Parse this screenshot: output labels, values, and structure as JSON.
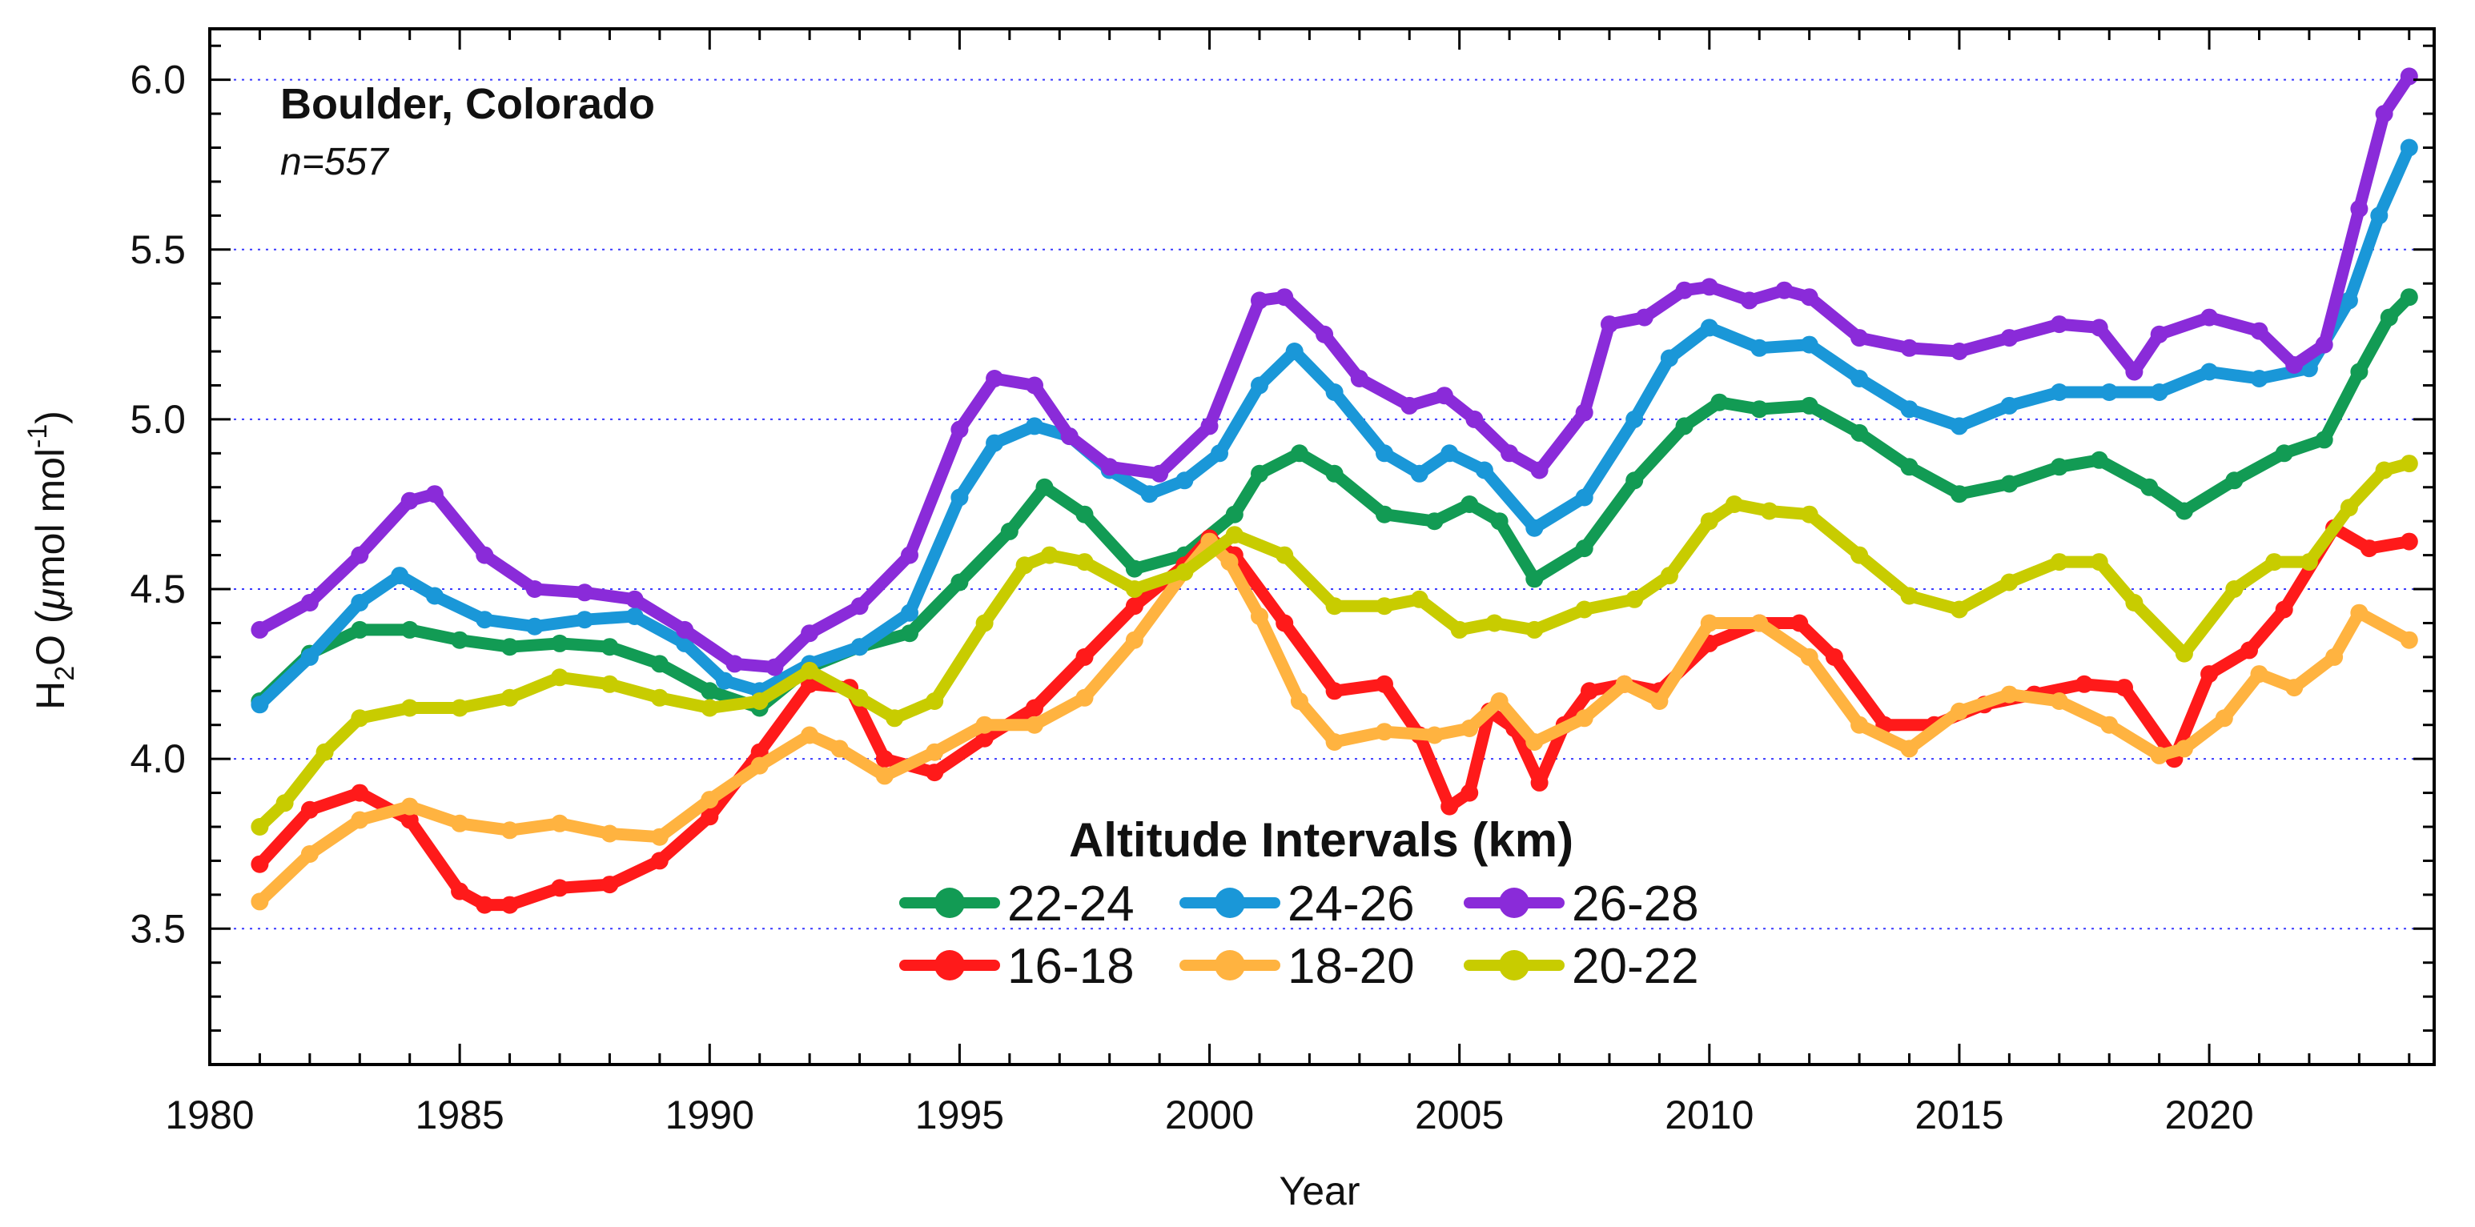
{
  "chart_data": {
    "type": "line",
    "title": "Boulder, Colorado",
    "subtitle": "n=557",
    "xlabel": "Year",
    "ylabel": "H2O (μmol mol-1)",
    "ylabel_parts": {
      "pre": "H",
      "sub": "2",
      "mid": "O (",
      "mu": "μ",
      "unit": "mol mol",
      "sup": "-1",
      "post": ")"
    },
    "xlim": [
      1980,
      2024.5
    ],
    "ylim": [
      3.1,
      6.15
    ],
    "xticks": [
      1980,
      1985,
      1990,
      1995,
      2000,
      2005,
      2010,
      2015,
      2020
    ],
    "xtick_labels": [
      "1980",
      "1985",
      "1990",
      "1995",
      "2000",
      "2005",
      "2010",
      "2015",
      "2020"
    ],
    "yticks": [
      3.5,
      4.0,
      4.5,
      5.0,
      5.5,
      6.0
    ],
    "ytick_labels": [
      "3.5",
      "4.0",
      "4.5",
      "5.0",
      "5.5",
      "6.0"
    ],
    "grid": "horizontal dotted",
    "legend_title": "Altitude Intervals (km)",
    "legend_placement": "bottom-center",
    "series": [
      {
        "name": "22-24",
        "color": "#129b54",
        "x": [
          1981,
          1982,
          1983,
          1984,
          1985,
          1986,
          1987,
          1988,
          1989,
          1990,
          1991,
          1992,
          1993,
          1994,
          1995,
          1996,
          1996.7,
          1997.5,
          1998.5,
          1999.5,
          2000.5,
          2001,
          2001.8,
          2002.5,
          2003.5,
          2004.5,
          2005.2,
          2005.8,
          2006.5,
          2007.5,
          2008.5,
          2009.5,
          2010.2,
          2011,
          2012,
          2013,
          2014,
          2015,
          2016,
          2017,
          2017.8,
          2018.8,
          2019.5,
          2020.5,
          2021.5,
          2022.3,
          2023,
          2023.6,
          2024
        ],
        "values": [
          4.17,
          4.31,
          4.38,
          4.38,
          4.35,
          4.33,
          4.34,
          4.33,
          4.28,
          4.2,
          4.15,
          4.27,
          4.33,
          4.37,
          4.52,
          4.67,
          4.8,
          4.72,
          4.56,
          4.6,
          4.72,
          4.84,
          4.9,
          4.84,
          4.72,
          4.7,
          4.75,
          4.7,
          4.53,
          4.62,
          4.82,
          4.98,
          5.05,
          5.03,
          5.04,
          4.96,
          4.86,
          4.78,
          4.81,
          4.86,
          4.88,
          4.8,
          4.73,
          4.82,
          4.9,
          4.94,
          5.14,
          5.3,
          5.36
        ]
      },
      {
        "name": "24-26",
        "color": "#1a97d8",
        "x": [
          1981,
          1982,
          1983,
          1983.8,
          1984.5,
          1985.5,
          1986.5,
          1987.5,
          1988.5,
          1989.5,
          1990.3,
          1991,
          1992,
          1993,
          1994,
          1995,
          1995.7,
          1996.5,
          1997.2,
          1998,
          1998.8,
          1999.5,
          2000.2,
          2001,
          2001.7,
          2002.5,
          2003.5,
          2004.2,
          2004.8,
          2005.5,
          2006.5,
          2007.5,
          2008.5,
          2009.2,
          2010,
          2011,
          2012,
          2013,
          2014,
          2015,
          2016,
          2017,
          2018,
          2019,
          2020,
          2021,
          2022,
          2022.8,
          2023.4,
          2024
        ],
        "values": [
          4.16,
          4.3,
          4.46,
          4.54,
          4.48,
          4.41,
          4.39,
          4.41,
          4.42,
          4.34,
          4.23,
          4.2,
          4.28,
          4.33,
          4.43,
          4.77,
          4.93,
          4.98,
          4.95,
          4.85,
          4.78,
          4.82,
          4.9,
          5.1,
          5.2,
          5.08,
          4.9,
          4.84,
          4.9,
          4.85,
          4.68,
          4.77,
          5.0,
          5.18,
          5.27,
          5.21,
          5.22,
          5.12,
          5.03,
          4.98,
          5.04,
          5.08,
          5.08,
          5.08,
          5.14,
          5.12,
          5.15,
          5.35,
          5.6,
          5.8
        ]
      },
      {
        "name": "26-28",
        "color": "#8a2bd9",
        "x": [
          1981,
          1982,
          1983,
          1984,
          1984.5,
          1985.5,
          1986.5,
          1987.5,
          1988.5,
          1989.5,
          1990.5,
          1991.3,
          1992,
          1993,
          1994,
          1995,
          1995.7,
          1996.5,
          1997.2,
          1998,
          1999,
          2000,
          2001,
          2001.5,
          2002.3,
          2003,
          2004,
          2004.7,
          2005.3,
          2006,
          2006.6,
          2007.5,
          2008,
          2008.7,
          2009.5,
          2010,
          2010.8,
          2011.5,
          2012,
          2013,
          2014,
          2015,
          2016,
          2017,
          2017.8,
          2018.5,
          2019,
          2020,
          2021,
          2021.7,
          2022.3,
          2023,
          2023.5,
          2024
        ],
        "values": [
          4.38,
          4.46,
          4.6,
          4.76,
          4.78,
          4.6,
          4.5,
          4.49,
          4.47,
          4.38,
          4.28,
          4.27,
          4.37,
          4.45,
          4.6,
          4.97,
          5.12,
          5.1,
          4.95,
          4.86,
          4.84,
          4.98,
          5.35,
          5.36,
          5.25,
          5.12,
          5.04,
          5.07,
          5.0,
          4.9,
          4.85,
          5.02,
          5.28,
          5.3,
          5.38,
          5.39,
          5.35,
          5.38,
          5.36,
          5.24,
          5.21,
          5.2,
          5.24,
          5.28,
          5.27,
          5.14,
          5.25,
          5.3,
          5.26,
          5.16,
          5.22,
          5.62,
          5.9,
          6.01
        ]
      },
      {
        "name": "16-18",
        "color": "#ff1a1a",
        "x": [
          1981,
          1982,
          1983,
          1984,
          1985,
          1985.5,
          1986,
          1987,
          1988,
          1989,
          1990,
          1991,
          1992,
          1992.8,
          1993.5,
          1994.5,
          1995.5,
          1996.5,
          1997.5,
          1998.5,
          1999.5,
          2000,
          2000.5,
          2001.5,
          2002.5,
          2003.5,
          2004.2,
          2004.8,
          2005.2,
          2005.6,
          2006.1,
          2006.6,
          2007.1,
          2007.6,
          2008.3,
          2009,
          2010,
          2011,
          2011.8,
          2012.5,
          2013.5,
          2014.5,
          2015.5,
          2016.5,
          2017.5,
          2018.3,
          2019.3,
          2020,
          2020.8,
          2021.5,
          2022.5,
          2023.2,
          2024
        ],
        "values": [
          3.69,
          3.85,
          3.9,
          3.82,
          3.61,
          3.57,
          3.57,
          3.62,
          3.63,
          3.7,
          3.83,
          4.02,
          4.22,
          4.21,
          4.0,
          3.96,
          4.06,
          4.15,
          4.3,
          4.45,
          4.57,
          4.65,
          4.6,
          4.4,
          4.2,
          4.22,
          4.07,
          3.86,
          3.9,
          4.14,
          4.09,
          3.93,
          4.1,
          4.2,
          4.22,
          4.2,
          4.34,
          4.4,
          4.4,
          4.3,
          4.1,
          4.1,
          4.16,
          4.19,
          4.22,
          4.21,
          4.0,
          4.25,
          4.32,
          4.44,
          4.68,
          4.62,
          4.64
        ]
      },
      {
        "name": "18-20",
        "color": "#ffb340",
        "x": [
          1981,
          1982,
          1983,
          1984,
          1985,
          1986,
          1987,
          1988,
          1989,
          1990,
          1991,
          1992,
          1992.6,
          1993.5,
          1994.5,
          1995.5,
          1996.5,
          1997.5,
          1998.5,
          1999.5,
          2000,
          2000.4,
          2001,
          2001.8,
          2002.5,
          2003.5,
          2004.5,
          2005.2,
          2005.8,
          2006.5,
          2007.5,
          2008.3,
          2009,
          2010,
          2011,
          2012,
          2013,
          2014,
          2015,
          2016,
          2017,
          2018,
          2019,
          2019.5,
          2020.3,
          2021,
          2021.7,
          2022.5,
          2023,
          2024
        ],
        "values": [
          3.58,
          3.72,
          3.82,
          3.86,
          3.81,
          3.79,
          3.81,
          3.78,
          3.77,
          3.88,
          3.98,
          4.07,
          4.03,
          3.95,
          4.02,
          4.1,
          4.1,
          4.18,
          4.35,
          4.55,
          4.64,
          4.58,
          4.42,
          4.17,
          4.05,
          4.08,
          4.07,
          4.09,
          4.17,
          4.05,
          4.12,
          4.22,
          4.17,
          4.4,
          4.4,
          4.3,
          4.1,
          4.03,
          4.14,
          4.19,
          4.17,
          4.1,
          4.01,
          4.03,
          4.12,
          4.25,
          4.21,
          4.3,
          4.43,
          4.35
        ]
      },
      {
        "name": "20-22",
        "color": "#c8cc00",
        "x": [
          1981,
          1981.5,
          1982.3,
          1983,
          1984,
          1985,
          1986,
          1987,
          1988,
          1989,
          1990,
          1991,
          1992,
          1993,
          1993.7,
          1994.5,
          1995.5,
          1996.3,
          1996.8,
          1997.5,
          1998.5,
          1999.5,
          2000.5,
          2001.5,
          2002.5,
          2003.5,
          2004.2,
          2005,
          2005.7,
          2006.5,
          2007.5,
          2008.5,
          2009.2,
          2010,
          2010.5,
          2011.2,
          2012,
          2013,
          2014,
          2015,
          2016,
          2017,
          2017.8,
          2018.5,
          2019.5,
          2020.5,
          2021.3,
          2022,
          2022.8,
          2023.5,
          2024
        ],
        "values": [
          3.8,
          3.87,
          4.02,
          4.12,
          4.15,
          4.15,
          4.18,
          4.24,
          4.22,
          4.18,
          4.15,
          4.17,
          4.26,
          4.18,
          4.12,
          4.17,
          4.4,
          4.57,
          4.6,
          4.58,
          4.5,
          4.55,
          4.66,
          4.6,
          4.45,
          4.45,
          4.47,
          4.38,
          4.4,
          4.38,
          4.44,
          4.47,
          4.54,
          4.7,
          4.75,
          4.73,
          4.72,
          4.6,
          4.48,
          4.44,
          4.52,
          4.58,
          4.58,
          4.46,
          4.31,
          4.5,
          4.58,
          4.58,
          4.74,
          4.85,
          4.87
        ]
      }
    ]
  }
}
